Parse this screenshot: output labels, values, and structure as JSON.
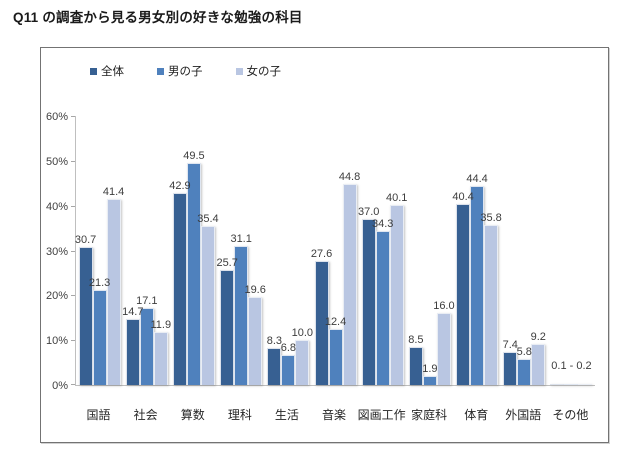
{
  "page_title": "Q11 の調査から見る男女別の好きな勉強の科目",
  "legend": {
    "items": [
      {
        "label": "全体",
        "color": "#376092"
      },
      {
        "label": "男の子",
        "color": "#4F81BD"
      },
      {
        "label": "女の子",
        "color": "#B9C6E2"
      }
    ]
  },
  "colors": {
    "series_total": "#376092",
    "series_boys": "#4F81BD",
    "series_girls": "#B9C6E2",
    "axis_line": "#BFBFBF",
    "value_label_text": "#3D3D3D",
    "frame_border": "#737373"
  },
  "chart_data": {
    "type": "bar",
    "title": "Q11 の調査から見る男女別の好きな勉強の科目",
    "categories": [
      "国語",
      "社会",
      "算数",
      "理科",
      "生活",
      "音楽",
      "図画工作",
      "家庭科",
      "体育",
      "外国語",
      "その他"
    ],
    "series": [
      {
        "name": "全体",
        "color": "#376092",
        "values": [
          30.7,
          14.7,
          42.9,
          25.7,
          8.3,
          27.6,
          37.0,
          8.5,
          40.4,
          7.4,
          0.1
        ]
      },
      {
        "name": "男の子",
        "color": "#4F81BD",
        "values": [
          21.3,
          17.1,
          49.5,
          31.1,
          6.8,
          12.4,
          34.3,
          1.9,
          44.4,
          5.8,
          0.1
        ]
      },
      {
        "name": "女の子",
        "color": "#B9C6E2",
        "values": [
          41.4,
          11.9,
          35.4,
          19.6,
          10.0,
          44.8,
          40.1,
          16.0,
          35.8,
          9.2,
          0.2
        ]
      }
    ],
    "y_axis": {
      "min": 0,
      "max": 60,
      "step": 10,
      "tick_labels": [
        "0%",
        "10%",
        "20%",
        "30%",
        "40%",
        "50%",
        "60%"
      ]
    },
    "data_label_format": "one_decimal_above_bar",
    "other_category_index": 10,
    "other_combined_label": "0.1 - 0.2",
    "grid": false,
    "legend_position": "top-left-inside",
    "xlabel": "",
    "ylabel": ""
  }
}
